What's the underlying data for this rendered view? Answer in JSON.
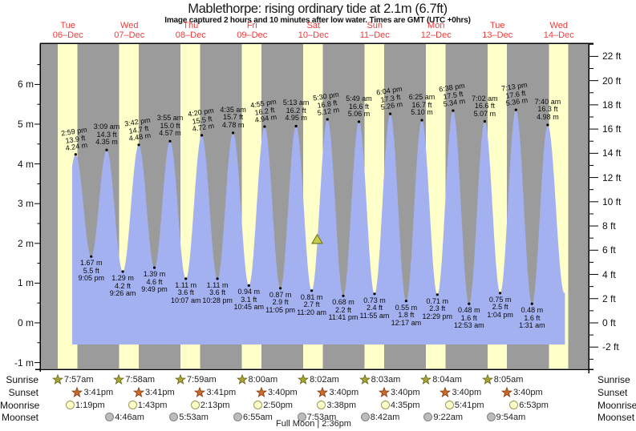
{
  "title": "Mablethorpe: rising ordinary tide at 2.1m (6.7ft)",
  "subtitle": "Image captured 2 hours and 10 minutes after low water. Times are GMT (UTC +0hrs)",
  "days": [
    {
      "name": "Tue",
      "date": "06–Dec"
    },
    {
      "name": "Wed",
      "date": "07–Dec"
    },
    {
      "name": "Thu",
      "date": "08–Dec"
    },
    {
      "name": "Fri",
      "date": "09–Dec"
    },
    {
      "name": "Sat",
      "date": "10–Dec"
    },
    {
      "name": "Sun",
      "date": "11–Dec"
    },
    {
      "name": "Mon",
      "date": "12–Dec"
    },
    {
      "name": "Tue",
      "date": "13–Dec"
    },
    {
      "name": "Wed",
      "date": "14–Dec"
    }
  ],
  "axis": {
    "left_ticks": [
      "6 m",
      "5 m",
      "4 m",
      "3 m",
      "2 m",
      "1 m",
      "0 m",
      "-1 m"
    ],
    "right_ticks": [
      "22 ft",
      "20 ft",
      "18 ft",
      "16 ft",
      "14 ft",
      "12 ft",
      "10 ft",
      "8 ft",
      "6 ft",
      "4 ft",
      "2 ft",
      "0 ft",
      "-2 ft"
    ]
  },
  "chart_data": {
    "type": "area",
    "ylabel_left": "m",
    "ylabel_right": "ft",
    "ylim_m": [
      -1.2,
      7.1
    ],
    "highs": [
      {
        "day": 0,
        "time": "2:59 pm",
        "ft": "13.9",
        "m": "4.24"
      },
      {
        "day": 1,
        "time": "3:09 am",
        "ft": "14.3",
        "m": "4.35"
      },
      {
        "day": 1,
        "time": "3:42 pm",
        "ft": "14.7",
        "m": "4.48"
      },
      {
        "day": 2,
        "time": "3:55 am",
        "ft": "15.0",
        "m": "4.57"
      },
      {
        "day": 2,
        "time": "4:20 pm",
        "ft": "15.5",
        "m": "4.72"
      },
      {
        "day": 3,
        "time": "4:35 am",
        "ft": "15.7",
        "m": "4.78"
      },
      {
        "day": 3,
        "time": "4:55 pm",
        "ft": "16.2",
        "m": "4.94"
      },
      {
        "day": 4,
        "time": "5:13 am",
        "ft": "16.2",
        "m": "4.95"
      },
      {
        "day": 4,
        "time": "5:30 pm",
        "ft": "16.8",
        "m": "5.12"
      },
      {
        "day": 5,
        "time": "5:49 am",
        "ft": "16.6",
        "m": "5.06"
      },
      {
        "day": 5,
        "time": "6:04 pm",
        "ft": "17.3",
        "m": "5.26"
      },
      {
        "day": 6,
        "time": "6:25 am",
        "ft": "16.7",
        "m": "5.10"
      },
      {
        "day": 6,
        "time": "6:38 pm",
        "ft": "17.5",
        "m": "5.34"
      },
      {
        "day": 7,
        "time": "7:02 am",
        "ft": "16.6",
        "m": "5.07"
      },
      {
        "day": 7,
        "time": "7:13 pm",
        "ft": "17.6",
        "m": "5.36"
      },
      {
        "day": 8,
        "time": "7:40 am",
        "ft": "16.3",
        "m": "4.98"
      }
    ],
    "lows": [
      {
        "day": 0,
        "time": "9:05 pm",
        "ft": "5.5",
        "m": "1.67"
      },
      {
        "day": 1,
        "time": "9:26 am",
        "ft": "4.2",
        "m": "1.29"
      },
      {
        "day": 1,
        "time": "9:49 pm",
        "ft": "4.6",
        "m": "1.39"
      },
      {
        "day": 2,
        "time": "10:07 am",
        "ft": "3.6",
        "m": "1.11"
      },
      {
        "day": 2,
        "time": "10:28 pm",
        "ft": "3.6",
        "m": "1.11"
      },
      {
        "day": 3,
        "time": "10:45 am",
        "ft": "3.1",
        "m": "0.94"
      },
      {
        "day": 3,
        "time": "11:05 pm",
        "ft": "2.9",
        "m": "0.87"
      },
      {
        "day": 4,
        "time": "11:20 am",
        "ft": "2.7",
        "m": "0.81"
      },
      {
        "day": 4,
        "time": "11:41 pm",
        "ft": "2.2",
        "m": "0.68"
      },
      {
        "day": 5,
        "time": "11:55 am",
        "ft": "2.4",
        "m": "0.73"
      },
      {
        "day": 6,
        "time": "12:17 am",
        "ft": "1.8",
        "m": "0.55"
      },
      {
        "day": 6,
        "time": "12:29 pm",
        "ft": "2.3",
        "m": "0.71"
      },
      {
        "day": 7,
        "time": "12:53 am",
        "ft": "1.6",
        "m": "0.48"
      },
      {
        "day": 7,
        "time": "1:04 pm",
        "ft": "2.5",
        "m": "0.75"
      },
      {
        "day": 8,
        "time": "1:31 am",
        "ft": "1.6",
        "m": "0.48"
      }
    ],
    "marker": {
      "level_m": "2.1",
      "day": 4,
      "approx_time": "1:30 pm"
    },
    "colors": {
      "water": "#a3b1f0",
      "day_stripe": "#ffffca",
      "night_bg": "#9b9b9b",
      "day_label_red": "#ee3a3a",
      "sunrise_star": "#a9a433",
      "sunset_star": "#cb6d28",
      "moonrise_circle": "#ffffca",
      "moonset_circle": "#bcbcbc",
      "marker_fill": "#c9c94a"
    }
  },
  "almanac": {
    "row_labels": [
      "Sunrise",
      "Sunset",
      "Moonrise",
      "Moonset"
    ],
    "sunrise": [
      {
        "day": 0,
        "time": "7:57am"
      },
      {
        "day": 1,
        "time": "7:58am"
      },
      {
        "day": 2,
        "time": "7:59am"
      },
      {
        "day": 3,
        "time": "8:00am"
      },
      {
        "day": 4,
        "time": "8:02am"
      },
      {
        "day": 5,
        "time": "8:03am"
      },
      {
        "day": 6,
        "time": "8:04am"
      },
      {
        "day": 7,
        "time": "8:05am"
      }
    ],
    "sunset": [
      {
        "day": 0,
        "time": "3:41pm"
      },
      {
        "day": 1,
        "time": "3:41pm"
      },
      {
        "day": 2,
        "time": "3:41pm"
      },
      {
        "day": 3,
        "time": "3:40pm"
      },
      {
        "day": 4,
        "time": "3:40pm"
      },
      {
        "day": 5,
        "time": "3:40pm"
      },
      {
        "day": 6,
        "time": "3:40pm"
      },
      {
        "day": 7,
        "time": "3:40pm"
      }
    ],
    "moonrise": [
      {
        "day": 0,
        "time": "1:19pm"
      },
      {
        "day": 1,
        "time": "1:43pm"
      },
      {
        "day": 2,
        "time": "2:13pm"
      },
      {
        "day": 3,
        "time": "2:50pm"
      },
      {
        "day": 4,
        "time": "3:38pm"
      },
      {
        "day": 5,
        "time": "4:35pm"
      },
      {
        "day": 6,
        "time": "5:41pm"
      },
      {
        "day": 7,
        "time": "6:53pm"
      }
    ],
    "moonset": [
      {
        "day": 1,
        "time": "4:46am"
      },
      {
        "day": 2,
        "time": "5:53am"
      },
      {
        "day": 3,
        "time": "6:55am"
      },
      {
        "day": 4,
        "time": "7:53am"
      },
      {
        "day": 5,
        "time": "8:42am"
      },
      {
        "day": 6,
        "time": "9:22am"
      },
      {
        "day": 7,
        "time": "9:54am"
      }
    ],
    "full_moon": "Full Moon | 2:36pm"
  }
}
